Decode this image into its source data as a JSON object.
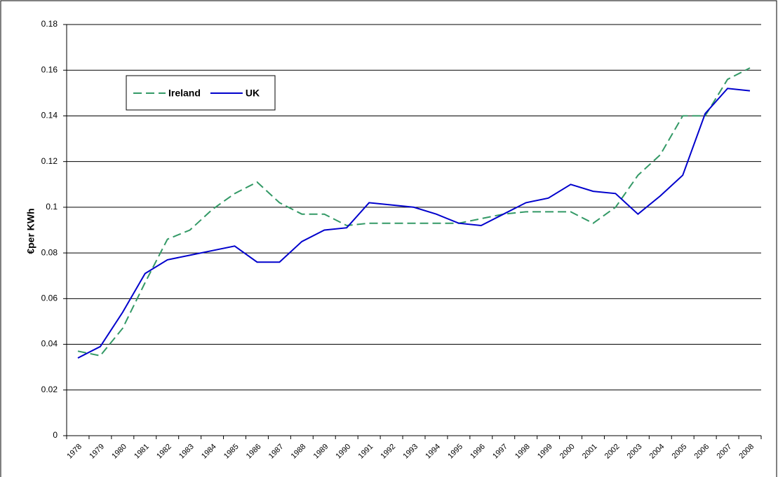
{
  "chart_data": {
    "type": "line",
    "ylabel": "€per KWh",
    "categories": [
      "1978",
      "1979",
      "1980",
      "1981",
      "1982",
      "1983",
      "1984",
      "1985",
      "1986",
      "1987",
      "1988",
      "1989",
      "1990",
      "1991",
      "1992",
      "1993",
      "1994",
      "1995",
      "1996",
      "1997",
      "1998",
      "1999",
      "2000",
      "2001",
      "2002",
      "2003",
      "2004",
      "2005",
      "2006",
      "2007",
      "2008"
    ],
    "series": [
      {
        "name": "Ireland",
        "color": "#339966",
        "dashed": true,
        "values": [
          0.037,
          0.035,
          0.047,
          0.067,
          0.086,
          0.09,
          0.099,
          0.106,
          0.111,
          0.102,
          0.097,
          0.097,
          0.092,
          0.093,
          0.093,
          0.093,
          0.093,
          0.093,
          0.095,
          0.097,
          0.098,
          0.098,
          0.098,
          0.093,
          0.1,
          0.114,
          0.123,
          0.14,
          0.14,
          0.156,
          0.161
        ]
      },
      {
        "name": "UK",
        "color": "#0000cc",
        "dashed": false,
        "values": [
          0.034,
          0.039,
          0.054,
          0.071,
          0.077,
          0.079,
          0.081,
          0.083,
          0.076,
          0.076,
          0.085,
          0.09,
          0.091,
          0.102,
          0.101,
          0.1,
          0.097,
          0.093,
          0.092,
          0.097,
          0.102,
          0.104,
          0.11,
          0.107,
          0.106,
          0.097,
          0.105,
          0.114,
          0.141,
          0.152,
          0.151
        ]
      }
    ],
    "ylim": [
      0,
      0.18
    ],
    "yticks": [
      0,
      0.02,
      0.04,
      0.06,
      0.08,
      0.1,
      0.12,
      0.14,
      0.16,
      0.18
    ],
    "grid": true,
    "legend": "upper left"
  }
}
